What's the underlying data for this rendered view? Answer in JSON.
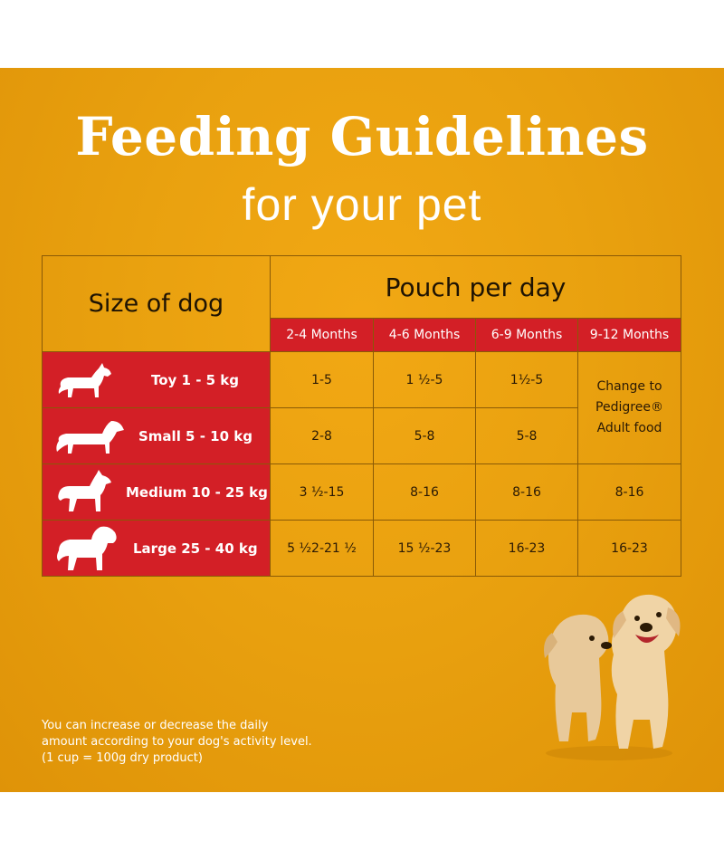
{
  "title": "Feeding Guidelines",
  "subtitle": "for your pet",
  "table": {
    "size_header": "Size of dog",
    "pouch_header": "Pouch per day",
    "months": [
      "2-4 Months",
      "4-6 Months",
      "6-9 Months",
      "9-12 Months"
    ],
    "rows": [
      {
        "size": "Toy 1 - 5 kg",
        "icon": "toy-dog-icon",
        "values": [
          "1-5",
          "1 ½-5",
          "1½-5"
        ]
      },
      {
        "size": "Small 5 - 10 kg",
        "icon": "small-dog-icon",
        "values": [
          "2-8",
          "5-8",
          "5-8"
        ]
      },
      {
        "size": "Medium 10 - 25 kg",
        "icon": "medium-dog-icon",
        "values": [
          "3 ½-15",
          "8-16",
          "8-16",
          "8-16"
        ]
      },
      {
        "size": "Large 25 - 40 kg",
        "icon": "large-dog-icon",
        "values": [
          "5 ½2-21 ½",
          "15 ½-23",
          "16-23",
          "16-23"
        ]
      }
    ],
    "merged_note": "Change to Pedigree® Adult food"
  },
  "footnote": "You can increase or decrease the daily amount according to your dog's activity level. (1 cup = 100g dry product)",
  "colors": {
    "background": "#e9a10f",
    "red": "#d31f26",
    "text": "#ffffff"
  }
}
